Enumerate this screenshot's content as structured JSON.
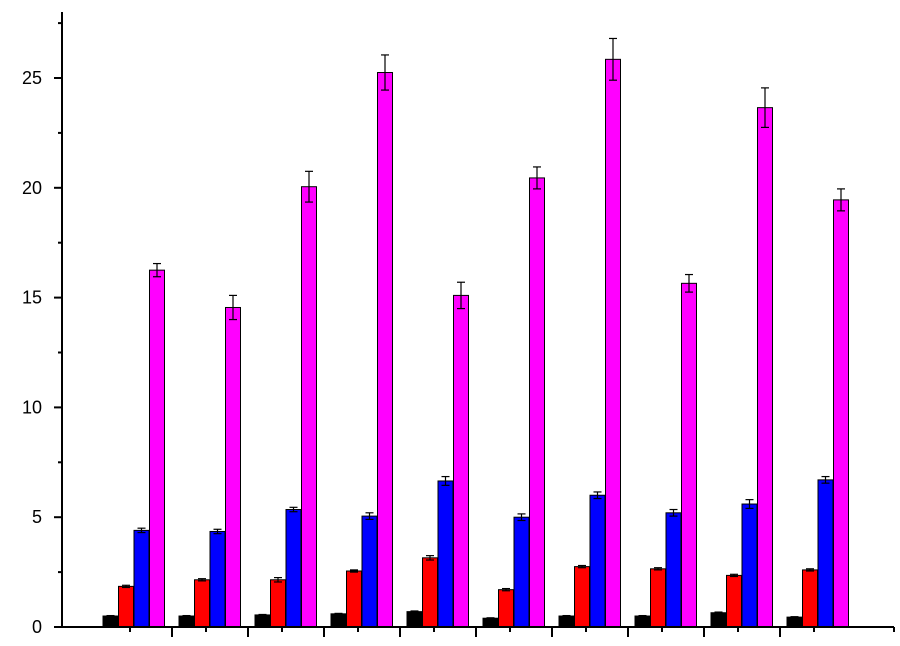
{
  "chart_data": {
    "type": "bar",
    "title": "",
    "xlabel": "",
    "ylabel": "",
    "ylim": [
      0,
      27.5
    ],
    "yticks": [
      0,
      5,
      10,
      15,
      20,
      25
    ],
    "ytick_labels": [
      "0",
      "5",
      "10",
      "15",
      "20",
      "25"
    ],
    "categories": [
      "",
      "",
      "",
      "",
      "",
      "",
      "",
      "",
      "",
      ""
    ],
    "grid": false,
    "legend": "none",
    "series": [
      {
        "color": "#000000",
        "values": [
          0.5,
          0.5,
          0.55,
          0.6,
          0.7,
          0.4,
          0.5,
          0.5,
          0.65,
          0.45
        ],
        "errors": [
          0.02,
          0.02,
          0.02,
          0.02,
          0.03,
          0.02,
          0.02,
          0.02,
          0.03,
          0.02
        ]
      },
      {
        "color": "#ff0000",
        "values": [
          1.85,
          2.15,
          2.15,
          2.55,
          3.15,
          1.7,
          2.75,
          2.65,
          2.35,
          2.6
        ],
        "errors": [
          0.05,
          0.05,
          0.1,
          0.05,
          0.1,
          0.05,
          0.05,
          0.05,
          0.05,
          0.05
        ]
      },
      {
        "color": "#0000ff",
        "values": [
          4.4,
          4.35,
          5.35,
          5.05,
          6.65,
          5.0,
          6.0,
          5.2,
          5.6,
          6.7
        ],
        "errors": [
          0.1,
          0.1,
          0.1,
          0.15,
          0.2,
          0.15,
          0.15,
          0.15,
          0.2,
          0.15
        ]
      },
      {
        "color": "#ff00ff",
        "values": [
          16.25,
          14.55,
          20.05,
          25.25,
          15.1,
          20.45,
          25.85,
          15.65,
          23.65,
          19.45
        ],
        "errors": [
          0.3,
          0.55,
          0.7,
          0.8,
          0.6,
          0.5,
          0.95,
          0.4,
          0.9,
          0.5
        ]
      }
    ]
  }
}
